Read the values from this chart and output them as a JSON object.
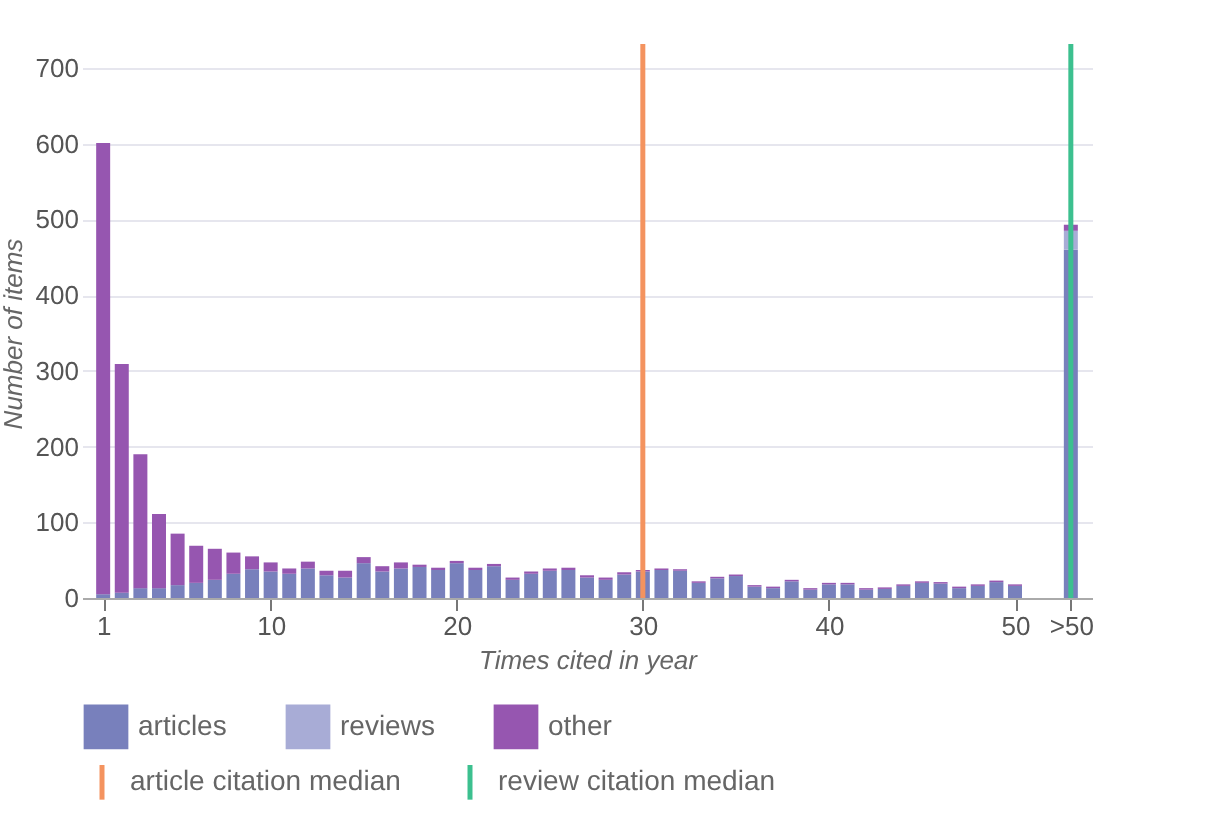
{
  "chart_data": {
    "type": "bar",
    "stacked": true,
    "xlabel": "Times cited in year",
    "ylabel": "Number of items",
    "x": [
      1,
      2,
      3,
      4,
      5,
      6,
      7,
      8,
      9,
      10,
      11,
      12,
      13,
      14,
      15,
      16,
      17,
      18,
      19,
      20,
      21,
      22,
      23,
      24,
      25,
      26,
      27,
      28,
      29,
      30,
      31,
      32,
      33,
      34,
      35,
      36,
      37,
      38,
      39,
      40,
      41,
      42,
      43,
      44,
      45,
      46,
      47,
      48,
      49,
      50,
      53
    ],
    "series": [
      {
        "name": "articles",
        "color": "#7880bc",
        "values": [
          5,
          7,
          13,
          13,
          17,
          20,
          24,
          32,
          38,
          35,
          32,
          39,
          30,
          27,
          46,
          35,
          39,
          41,
          37,
          46,
          37,
          42,
          24,
          32,
          36,
          37,
          27,
          24,
          31,
          35,
          37,
          36,
          20,
          26,
          29,
          15,
          13,
          22,
          11,
          18,
          18,
          11,
          12,
          16,
          20,
          19,
          13,
          16,
          21,
          16,
          460
        ]
      },
      {
        "name": "reviews",
        "color": "#a8acd6",
        "values": [
          0,
          0,
          0,
          0,
          0,
          0,
          0,
          0,
          0,
          0,
          0,
          0,
          0,
          0,
          0,
          0,
          0,
          0,
          0,
          0,
          0,
          0,
          0,
          0,
          0,
          0,
          0,
          0,
          0,
          0,
          0,
          0,
          0,
          0,
          0,
          0,
          0,
          0,
          0,
          0,
          0,
          0,
          0,
          0,
          0,
          0,
          0,
          0,
          0,
          0,
          25
        ]
      },
      {
        "name": "other",
        "color": "#9656b0",
        "values": [
          596,
          302,
          177,
          98,
          68,
          49,
          41,
          28,
          17,
          12,
          7,
          9,
          6,
          9,
          8,
          7,
          8,
          3,
          3,
          3,
          3,
          3,
          3,
          3,
          3,
          3,
          3,
          3,
          3,
          2,
          2,
          2,
          2,
          2,
          2,
          2,
          2,
          2,
          2,
          2,
          2,
          2,
          2,
          2,
          2,
          2,
          2,
          2,
          2,
          2,
          8
        ]
      }
    ],
    "xlim": [
      0.4,
      53.6
    ],
    "xticks": [
      1,
      10,
      20,
      30,
      40,
      50,
      {
        "value": 53,
        "label": ">50"
      }
    ],
    "ylim": [
      0,
      700
    ],
    "yticks": [
      0,
      100,
      200,
      300,
      400,
      500,
      600,
      700
    ],
    "ref_lines": [
      {
        "axis": "x",
        "value": 30,
        "label": "article citation median",
        "color": "#f4935f"
      },
      {
        "axis": "x",
        "value": 53,
        "label": "review citation median",
        "color": "#3cc08f"
      }
    ],
    "grid": "y",
    "legend": "bottom"
  }
}
